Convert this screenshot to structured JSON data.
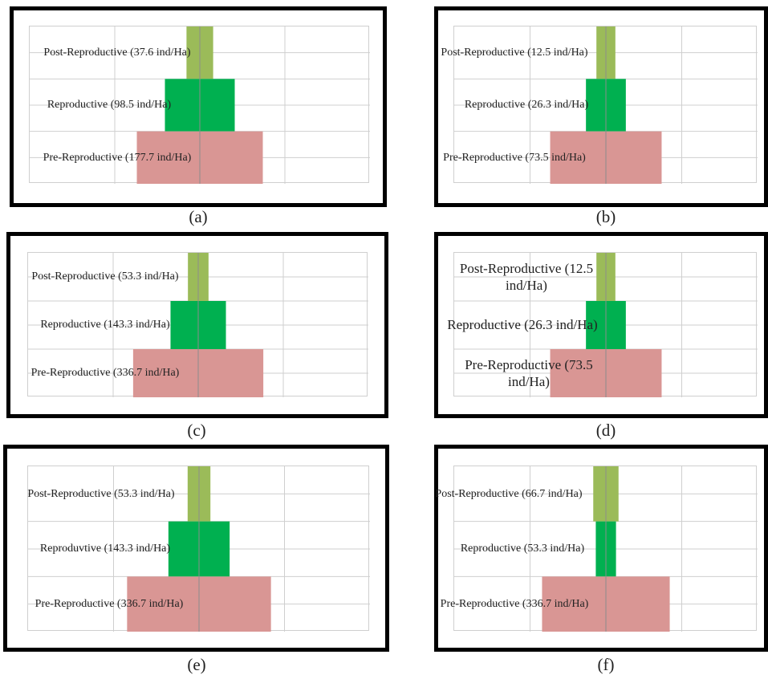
{
  "colors": {
    "post_reproductive": "#9bbb59",
    "reproductive": "#00b050",
    "pre_reproductive": "#d99694",
    "grid": "#cfcfcf",
    "frame": "#000000"
  },
  "chart_data": [
    {
      "panel": "a",
      "caption": "(a)",
      "type": "bar",
      "orientation": "horizontal-population-pyramid",
      "categories": [
        "Post-Reproductive",
        "Reproductive",
        "Pre-Reproductive"
      ],
      "values": [
        37.6,
        98.5,
        177.7
      ],
      "labels": [
        "Post-Reproductive (37.6 ind/Ha)",
        "Reproductive (98.5 ind/Ha)",
        "Pre-Reproductive (177.7 ind/Ha)"
      ],
      "xlim": [
        -240,
        240
      ],
      "grid": true
    },
    {
      "panel": "b",
      "caption": "(b)",
      "type": "bar",
      "orientation": "horizontal-population-pyramid",
      "categories": [
        "Post-Reproductive",
        "Reproductive",
        "Pre-Reproductive"
      ],
      "values": [
        12.5,
        26.3,
        73.5
      ],
      "labels": [
        "Post-Reproductive (12.5 ind/Ha)",
        "Reproductive (26.3 ind/Ha)",
        "Pre-Reproductive (73.5 ind/Ha)"
      ],
      "xlim": [
        -100,
        100
      ],
      "grid": true
    },
    {
      "panel": "c",
      "caption": "(c)",
      "type": "bar",
      "orientation": "horizontal-population-pyramid",
      "categories": [
        "Post-Reproductive",
        "Reproductive",
        "Pre-Reproductive"
      ],
      "values": [
        53.3,
        143.3,
        336.7
      ],
      "labels": [
        "Post-Reproductive (53.3 ind/Ha)",
        "Reproductive (143.3 ind/Ha)",
        "Pre-Reproductive (336.7 ind/Ha)"
      ],
      "xlim": [
        -440,
        440
      ],
      "grid": true
    },
    {
      "panel": "d",
      "caption": "(d)",
      "type": "bar",
      "orientation": "horizontal-population-pyramid",
      "categories": [
        "Post-Reproductive",
        "Reproductive",
        "Pre-Reproductive"
      ],
      "values": [
        12.5,
        26.3,
        73.5
      ],
      "labels": [
        "Post-Reproductive (12.5 ind/Ha)",
        "Reproductive (26.3 ind/Ha)",
        "Pre-Reproductive (73.5 ind/Ha)"
      ],
      "xlim": [
        -100,
        100
      ],
      "grid": true
    },
    {
      "panel": "e",
      "caption": "(e)",
      "type": "bar",
      "orientation": "horizontal-population-pyramid",
      "categories": [
        "Post-Reproductive",
        "Reproductive",
        "Pre-Reproductive"
      ],
      "values": [
        53.3,
        143.3,
        336.7
      ],
      "labels": [
        "Post-Reproductive (53.3 ind/Ha)",
        "Reproduvtive (143.3 ind/Ha)",
        "Pre-Reproductive (336.7 ind/Ha)"
      ],
      "xlim": [
        -400,
        400
      ],
      "grid": true
    },
    {
      "panel": "f",
      "caption": "(f)",
      "type": "bar",
      "orientation": "horizontal-population-pyramid",
      "categories": [
        "Post-Reproductive",
        "Reproductive",
        "Pre-Reproductive"
      ],
      "values": [
        66.7,
        53.3,
        336.7
      ],
      "labels": [
        "Post-Reproductive (66.7 ind/Ha)",
        "Reproductive (53.3 ind/Ha)",
        "Pre-Reproductive (336.7 ind/Ha)"
      ],
      "xlim": [
        -400,
        400
      ],
      "grid": true
    }
  ]
}
